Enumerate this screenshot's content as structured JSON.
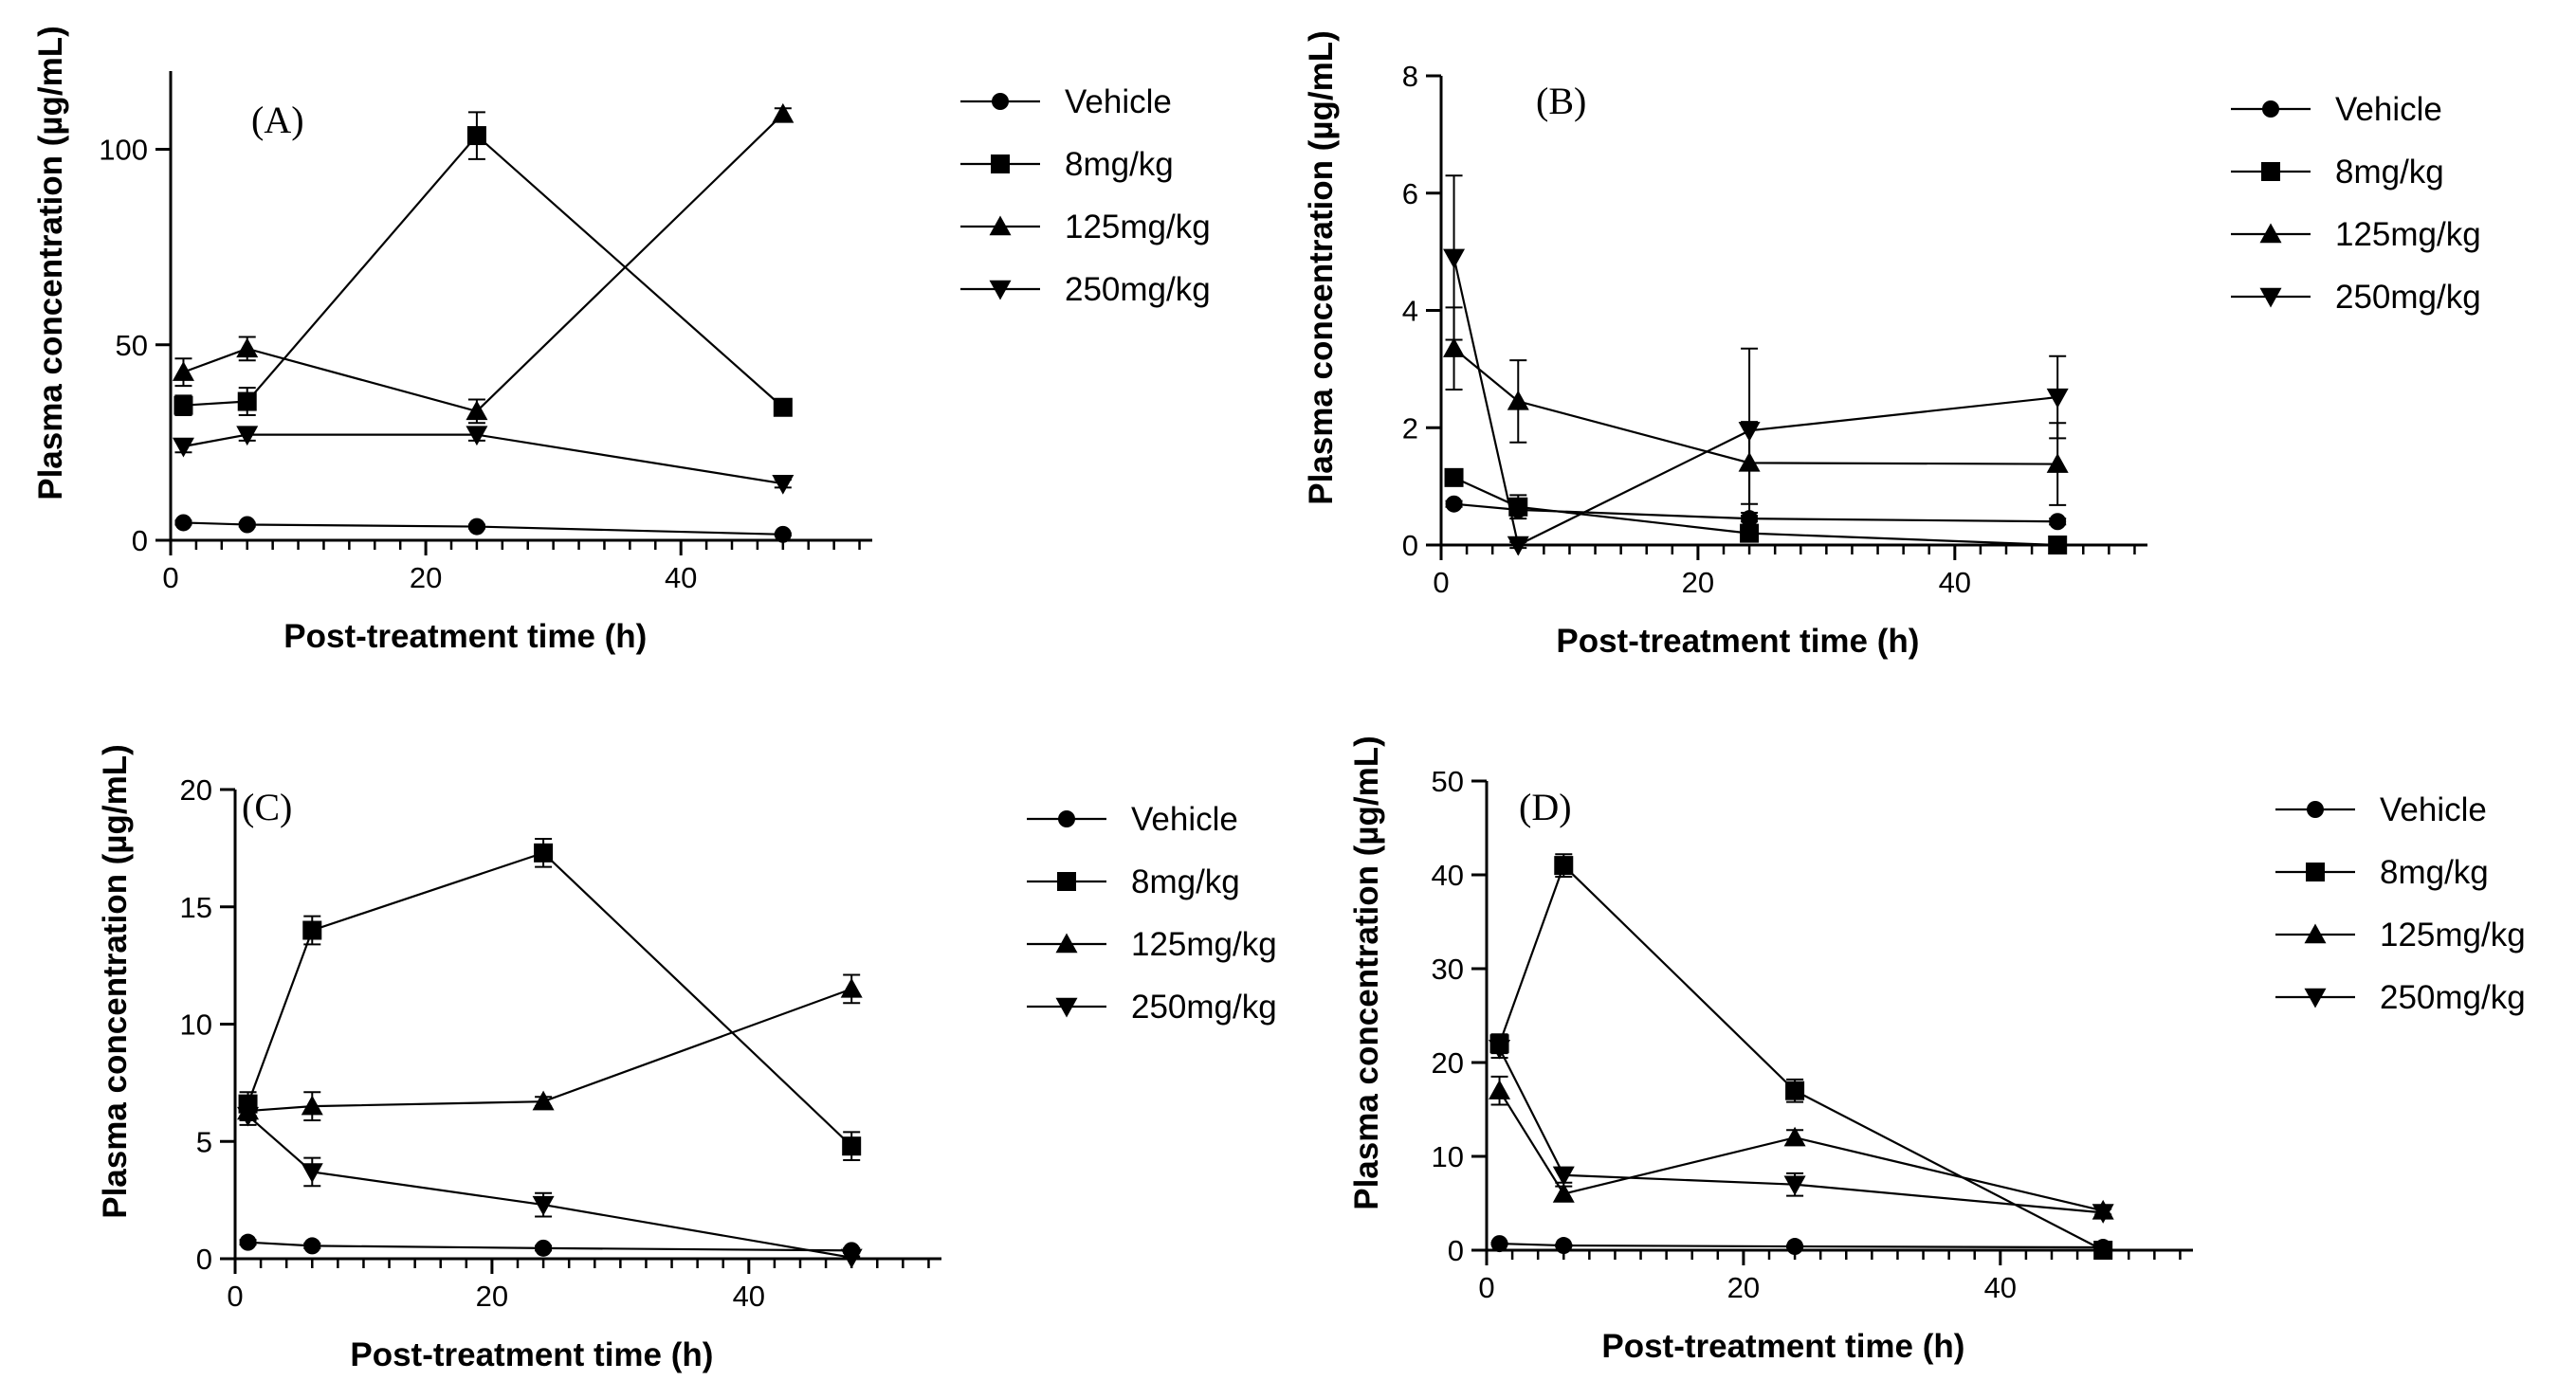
{
  "legend": {
    "entries": [
      {
        "label": "Vehicle",
        "marker": "circle"
      },
      {
        "label": "8mg/kg",
        "marker": "square"
      },
      {
        "label": "125mg/kg",
        "marker": "triangle-up"
      },
      {
        "label": "250mg/kg",
        "marker": "triangle-down"
      }
    ]
  },
  "chart_data": [
    {
      "panel": "(A)",
      "type": "line",
      "xlabel": "Post-treatment time (h)",
      "ylabel": "Plasma concentration (µg/mL)",
      "xlim": [
        0,
        55
      ],
      "ylim": [
        0,
        120
      ],
      "xticks": [
        0,
        20,
        40
      ],
      "yticks": [
        0,
        50,
        100
      ],
      "x": [
        1,
        6,
        24,
        48
      ],
      "series": [
        {
          "name": "Vehicle",
          "values": [
            4.5,
            4,
            3.5,
            1.5
          ],
          "errors": [
            0.5,
            0.5,
            0.5,
            0.3
          ]
        },
        {
          "name": "8mg/kg",
          "values": [
            34.5,
            35.5,
            103.5,
            34
          ],
          "errors": [
            2.5,
            3.5,
            6,
            1.5
          ]
        },
        {
          "name": "125mg/kg",
          "values": [
            43,
            49,
            33,
            109
          ],
          "errors": [
            3.5,
            3,
            3,
            1.5
          ]
        },
        {
          "name": "250mg/kg",
          "values": [
            24,
            27,
            27,
            14.5
          ],
          "errors": [
            1.5,
            1.5,
            1.5,
            1
          ]
        }
      ]
    },
    {
      "panel": "(B)",
      "type": "line",
      "xlabel": "Post-treatment time (h)",
      "ylabel": "Plasma concentration (µg/mL)",
      "xlim": [
        0,
        55
      ],
      "ylim": [
        0,
        8
      ],
      "xticks": [
        0,
        20,
        40
      ],
      "yticks": [
        0,
        2,
        4,
        6,
        8
      ],
      "x": [
        1,
        6,
        24,
        48
      ],
      "series": [
        {
          "name": "Vehicle",
          "values": [
            0.7,
            0.6,
            0.45,
            0.4
          ],
          "errors": [
            0.05,
            0.05,
            0.05,
            0.05
          ]
        },
        {
          "name": "8mg/kg",
          "values": [
            1.15,
            0.65,
            0.2,
            0.0
          ],
          "errors": [
            0.1,
            0.2,
            0.1,
            0.05
          ]
        },
        {
          "name": "125mg/kg",
          "values": [
            3.35,
            2.45,
            1.4,
            1.38
          ],
          "errors": [
            0.7,
            0.7,
            0.7,
            0.7
          ]
        },
        {
          "name": "250mg/kg",
          "values": [
            4.9,
            0.0,
            1.95,
            2.52
          ],
          "errors": [
            1.4,
            0.05,
            1.4,
            0.7
          ]
        }
      ]
    },
    {
      "panel": "(C)",
      "type": "line",
      "xlabel": "Post-treatment time (h)",
      "ylabel": "Plasma concentration (µg/mL)",
      "xlim": [
        0,
        55
      ],
      "ylim": [
        0,
        20
      ],
      "xticks": [
        0,
        20,
        40
      ],
      "yticks": [
        0,
        5,
        10,
        15,
        20
      ],
      "x": [
        1,
        6,
        24,
        48
      ],
      "series": [
        {
          "name": "Vehicle",
          "values": [
            0.7,
            0.55,
            0.45,
            0.35
          ],
          "errors": [
            0.1,
            0.1,
            0.1,
            0.1
          ]
        },
        {
          "name": "8mg/kg",
          "values": [
            6.6,
            14,
            17.3,
            4.8
          ],
          "errors": [
            0.5,
            0.6,
            0.6,
            0.6
          ]
        },
        {
          "name": "125mg/kg",
          "values": [
            6.3,
            6.5,
            6.7,
            11.5
          ],
          "errors": [
            0.4,
            0.6,
            0.2,
            0.6
          ]
        },
        {
          "name": "250mg/kg",
          "values": [
            6.1,
            3.7,
            2.3,
            0.05
          ],
          "errors": [
            0.4,
            0.6,
            0.5,
            0.05
          ]
        }
      ]
    },
    {
      "panel": "(D)",
      "type": "line",
      "xlabel": "Post-treatment time (h)",
      "ylabel": "Plasma concentration (µg/mL)",
      "xlim": [
        0,
        55
      ],
      "ylim": [
        0,
        50
      ],
      "xticks": [
        0,
        20,
        40
      ],
      "yticks": [
        0,
        10,
        20,
        30,
        40,
        50
      ],
      "x": [
        1,
        6,
        24,
        48
      ],
      "series": [
        {
          "name": "Vehicle",
          "values": [
            0.7,
            0.5,
            0.4,
            0.3
          ],
          "errors": [
            0.1,
            0.1,
            0.1,
            0.1
          ]
        },
        {
          "name": "8mg/kg",
          "values": [
            22,
            41,
            17,
            0
          ],
          "errors": [
            1,
            1.2,
            1.2,
            0.3
          ]
        },
        {
          "name": "125mg/kg",
          "values": [
            17,
            6,
            12,
            4.2
          ],
          "errors": [
            1.5,
            0.8,
            0.8,
            0.4
          ]
        },
        {
          "name": "250mg/kg",
          "values": [
            21.5,
            8,
            7,
            4
          ],
          "errors": [
            1,
            0.8,
            1.2,
            0.4
          ]
        }
      ]
    }
  ]
}
